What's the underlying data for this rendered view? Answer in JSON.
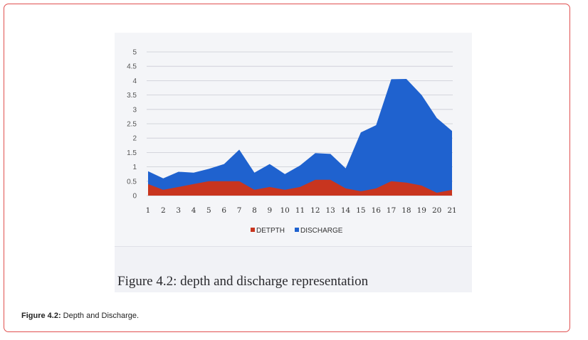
{
  "chart_data": {
    "type": "area",
    "x": [
      1,
      2,
      3,
      4,
      5,
      6,
      7,
      8,
      9,
      10,
      11,
      12,
      13,
      14,
      15,
      16,
      17,
      18,
      19,
      20,
      21
    ],
    "ylim": [
      0,
      5
    ],
    "yticks": [
      "0",
      "0.5",
      "1",
      "1.5",
      "2",
      "2.5",
      "3",
      "3.5",
      "4",
      "4.5",
      "5"
    ],
    "grid": true,
    "legend_position": "bottom",
    "series": [
      {
        "name": "DISCHARGE",
        "color": "#1f62cf",
        "values": [
          0.85,
          0.6,
          0.83,
          0.8,
          0.93,
          1.1,
          1.6,
          0.8,
          1.1,
          0.75,
          1.05,
          1.48,
          1.45,
          0.95,
          2.2,
          2.45,
          4.05,
          4.06,
          3.5,
          2.7,
          2.25
        ]
      },
      {
        "name": "DETPTH",
        "color": "#c8351f",
        "values": [
          0.4,
          0.2,
          0.3,
          0.4,
          0.5,
          0.5,
          0.5,
          0.2,
          0.3,
          0.2,
          0.3,
          0.55,
          0.55,
          0.25,
          0.15,
          0.25,
          0.5,
          0.45,
          0.35,
          0.1,
          0.2
        ]
      }
    ]
  },
  "figure_text": "Figure 4.2: depth and discharge representation",
  "caption": {
    "label": "Figure 4.2:",
    "text": " Depth and Discharge."
  }
}
